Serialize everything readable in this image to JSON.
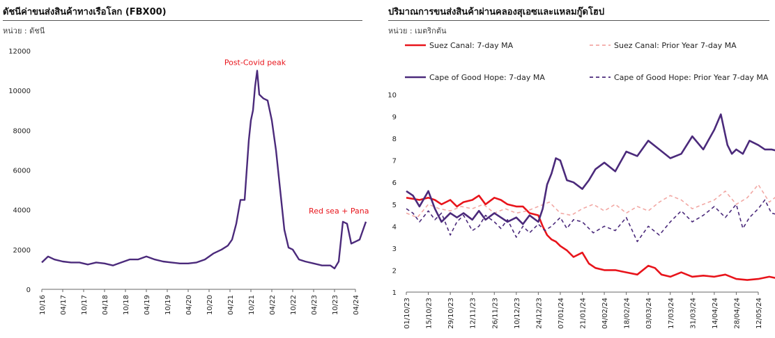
{
  "left_panel": {
    "title": "ดัชนีค่าขนส่งสินค้าทางเรือโลก (FBX00)",
    "unit": "หน่วย : ดัชนี"
  },
  "right_panel": {
    "title": "ปริมาณการขนส่งสินค้าผ่านคลองสุเอซและแหลมกู๊ดโฮป",
    "unit": "หน่วย : เมตริกตัน"
  },
  "chart_data": [
    {
      "type": "line",
      "title": "ดัชนีค่าขนส่งสินค้าทางเรือโลก (FBX00)",
      "ylabel": "หน่วย : ดัชนี",
      "ylim": [
        0,
        12000
      ],
      "yticks": [
        0,
        2000,
        4000,
        6000,
        8000,
        10000,
        12000
      ],
      "xticks": [
        "10/16",
        "04/17",
        "10/17",
        "04/18",
        "10/18",
        "04/19",
        "10/19",
        "04/20",
        "10/20",
        "04/21",
        "10/21",
        "04/22",
        "10/22",
        "04/23",
        "10/23",
        "04/24"
      ],
      "grid": false,
      "color": "#4b2a7b",
      "series": [
        {
          "x": [
            0,
            0.3,
            0.6,
            1,
            1.4,
            1.8,
            2.2,
            2.6,
            3,
            3.4,
            3.8,
            4.2,
            4.6,
            5,
            5.4,
            5.8,
            6.2,
            6.6,
            7,
            7.4,
            7.8,
            8.2,
            8.6,
            8.9,
            9.1,
            9.3,
            9.5,
            9.7,
            9.8,
            9.9,
            10,
            10.1,
            10.2,
            10.3,
            10.4,
            10.6,
            10.8,
            11,
            11.2,
            11.4,
            11.6,
            11.8,
            12,
            12.3,
            12.6,
            13,
            13.4,
            13.8,
            14,
            14.2,
            14.4,
            14.6,
            14.8,
            15,
            15.2,
            15.4,
            15.5
          ],
          "values": [
            1350,
            1650,
            1500,
            1400,
            1350,
            1350,
            1250,
            1350,
            1300,
            1200,
            1350,
            1500,
            1500,
            1650,
            1500,
            1400,
            1350,
            1300,
            1300,
            1350,
            1500,
            1800,
            2000,
            2200,
            2500,
            3300,
            4500,
            4500,
            6000,
            7500,
            8500,
            9000,
            10200,
            11000,
            9800,
            9600,
            9500,
            8500,
            7000,
            5000,
            3000,
            2100,
            2000,
            1500,
            1400,
            1300,
            1200,
            1200,
            1050,
            1400,
            3400,
            3300,
            2300,
            2400,
            2500,
            3100,
            3400
          ]
        }
      ],
      "annotations": [
        {
          "text": "Post-Covid peak",
          "x": 10.2,
          "y": 11000,
          "color": "#e8141b"
        },
        {
          "text": "Red sea + Panama",
          "x": 14.5,
          "y": 3400,
          "color": "#e8141b"
        }
      ]
    },
    {
      "type": "line",
      "title": "ปริมาณการขนส่งสินค้าผ่านคลองสุเอซและแหลมกู๊ดโฮป",
      "ylabel": "หน่วย : เมตริกตัน",
      "ylim": [
        1,
        10
      ],
      "yticks": [
        1,
        2,
        3,
        4,
        5,
        6,
        7,
        8,
        9,
        10
      ],
      "xticks": [
        "01/10/23",
        "15/10/23",
        "29/10/23",
        "12/11/23",
        "26/11/23",
        "10/12/23",
        "24/12/23",
        "07/01/24",
        "21/01/24",
        "04/02/24",
        "18/02/24",
        "03/03/24",
        "17/03/24",
        "31/03/24",
        "14/04/24",
        "28/04/24",
        "12/05/24"
      ],
      "grid": false,
      "legend": "top",
      "series": [
        {
          "name": "Suez Canal: 7-day MA",
          "color": "#e8141b",
          "dash": "solid",
          "x": [
            0,
            0.3,
            0.6,
            1,
            1.3,
            1.6,
            2,
            2.3,
            2.6,
            3,
            3.3,
            3.6,
            4,
            4.3,
            4.6,
            5,
            5.3,
            5.6,
            6,
            6.2,
            6.4,
            6.6,
            6.8,
            7,
            7.3,
            7.6,
            8,
            8.3,
            8.6,
            9,
            9.5,
            10,
            10.5,
            11,
            11.3,
            11.6,
            12,
            12.5,
            13,
            13.5,
            14,
            14.5,
            15,
            15.5,
            16,
            16.5,
            17
          ],
          "values": [
            5.3,
            5.25,
            5.2,
            5.3,
            5.2,
            5.0,
            5.2,
            4.9,
            5.1,
            5.2,
            5.4,
            5.0,
            5.3,
            5.2,
            5.0,
            4.9,
            4.9,
            4.6,
            4.5,
            4.0,
            3.6,
            3.4,
            3.3,
            3.1,
            2.9,
            2.6,
            2.8,
            2.3,
            2.1,
            2.0,
            2.0,
            1.9,
            1.8,
            2.2,
            2.1,
            1.8,
            1.7,
            1.9,
            1.7,
            1.75,
            1.7,
            1.8,
            1.6,
            1.55,
            1.6,
            1.7,
            1.6
          ]
        },
        {
          "name": "Suez Canal: Prior Year 7-day MA",
          "color": "#f2a8a4",
          "dash": "5,4",
          "x": [
            0,
            0.5,
            1,
            1.5,
            2,
            2.5,
            3,
            3.5,
            4,
            4.5,
            5,
            5.5,
            6,
            6.5,
            7,
            7.5,
            8,
            8.5,
            9,
            9.5,
            10,
            10.5,
            11,
            11.5,
            12,
            12.5,
            13,
            13.5,
            14,
            14.5,
            15,
            15.5,
            16,
            16.5,
            17
          ],
          "values": [
            4.6,
            4.4,
            5.0,
            4.8,
            4.7,
            4.9,
            4.8,
            5.0,
            4.6,
            4.8,
            4.6,
            4.7,
            4.9,
            5.1,
            4.6,
            4.5,
            4.8,
            5.0,
            4.7,
            5.0,
            4.6,
            4.9,
            4.7,
            5.1,
            5.4,
            5.2,
            4.8,
            5.0,
            5.2,
            5.6,
            5.0,
            5.3,
            5.9,
            5.1,
            5.5
          ]
        },
        {
          "name": "Cape of Good Hope: 7-day MA",
          "color": "#4b2a7b",
          "dash": "solid",
          "x": [
            0,
            0.3,
            0.6,
            1,
            1.3,
            1.6,
            2,
            2.3,
            2.6,
            3,
            3.3,
            3.6,
            4,
            4.3,
            4.6,
            5,
            5.3,
            5.6,
            6,
            6.2,
            6.4,
            6.6,
            6.8,
            7,
            7.3,
            7.6,
            8,
            8.3,
            8.6,
            9,
            9.5,
            10,
            10.5,
            11,
            11.5,
            12,
            12.5,
            13,
            13.5,
            14,
            14.3,
            14.6,
            14.8,
            15,
            15.3,
            15.6,
            16,
            16.3,
            16.6,
            17
          ],
          "values": [
            5.6,
            5.4,
            4.9,
            5.6,
            4.8,
            4.2,
            4.6,
            4.4,
            4.6,
            4.3,
            4.7,
            4.3,
            4.6,
            4.4,
            4.2,
            4.4,
            4.1,
            4.5,
            4.2,
            4.8,
            5.9,
            6.4,
            7.1,
            7.0,
            6.1,
            6.0,
            5.7,
            6.1,
            6.6,
            6.9,
            6.5,
            7.4,
            7.2,
            7.9,
            7.5,
            7.1,
            7.3,
            8.1,
            7.5,
            8.4,
            9.1,
            7.7,
            7.3,
            7.5,
            7.3,
            7.9,
            7.7,
            7.5,
            7.5,
            7.4
          ]
        },
        {
          "name": "Cape of Good Hope: Prior Year 7-day MA",
          "color": "#4b2a7b",
          "dash": "5,4",
          "x": [
            0,
            0.3,
            0.6,
            1,
            1.3,
            1.6,
            2,
            2.3,
            2.6,
            3,
            3.3,
            3.6,
            4,
            4.3,
            4.6,
            5,
            5.3,
            5.6,
            6,
            6.3,
            6.6,
            7,
            7.3,
            7.6,
            8,
            8.5,
            9,
            9.5,
            10,
            10.5,
            11,
            11.5,
            12,
            12.5,
            13,
            13.5,
            14,
            14.5,
            15,
            15.3,
            15.6,
            16,
            16.3,
            16.6,
            17
          ],
          "values": [
            4.8,
            4.6,
            4.2,
            4.7,
            4.3,
            4.6,
            3.6,
            4.2,
            4.5,
            3.8,
            4.0,
            4.5,
            4.2,
            3.9,
            4.3,
            3.5,
            4.0,
            3.7,
            4.1,
            3.8,
            4.0,
            4.4,
            3.9,
            4.3,
            4.2,
            3.7,
            4.0,
            3.8,
            4.4,
            3.3,
            4.0,
            3.6,
            4.2,
            4.7,
            4.2,
            4.5,
            4.9,
            4.4,
            5.0,
            3.9,
            4.4,
            4.8,
            5.2,
            4.6,
            4.5
          ]
        }
      ]
    }
  ]
}
